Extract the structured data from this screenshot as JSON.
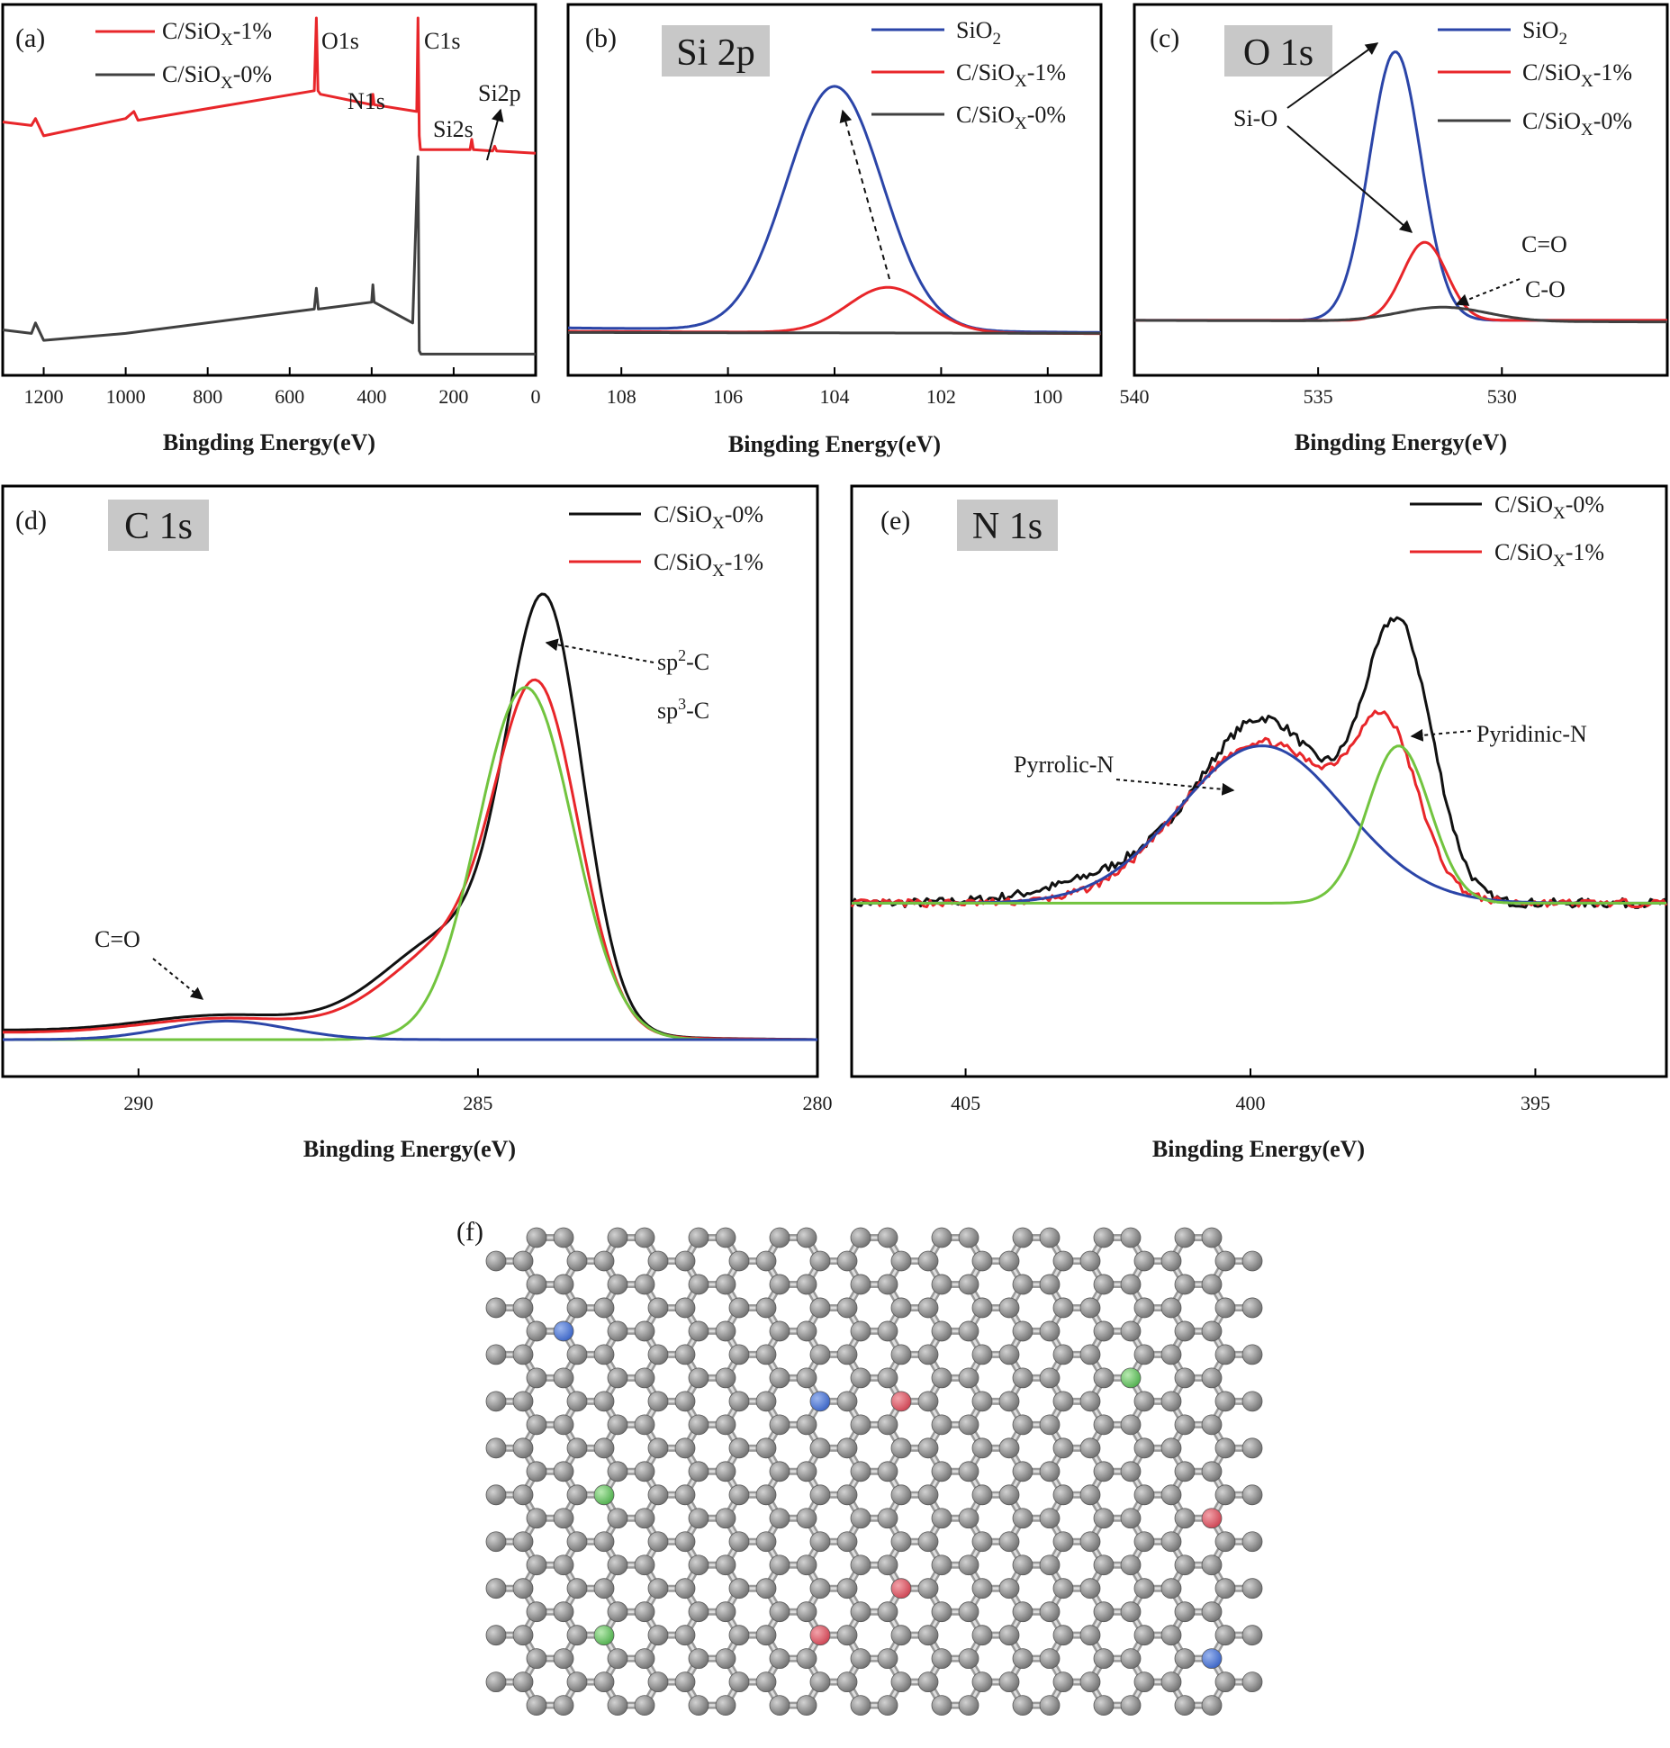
{
  "figure": {
    "background": "#ffffff"
  },
  "colors": {
    "red": "#e8262a",
    "black": "#111111",
    "darkgray": "#404040",
    "blue": "#2b45a8",
    "green": "#72c43f",
    "boxfill": "#c8c8c8",
    "atom_c": "#8d8d8d",
    "atom_n_pyrrolic": "#4b78d2",
    "atom_n_graphitic": "#62c362",
    "atom_n_pyridinic": "#de5a66"
  },
  "xlabel": "Bingding Energy(eV)",
  "chart_data": [
    {
      "id": "a",
      "panel_label": "(a)",
      "type": "line",
      "title": "",
      "xlabel": "Bingding Energy(eV)",
      "xlim": [
        1300,
        0
      ],
      "ylim": [
        0,
        100
      ],
      "xticks": [
        1200,
        1000,
        800,
        600,
        400,
        200,
        0
      ],
      "series": [
        {
          "name": "C/SiOX-1%",
          "legend_main": "C/SiO",
          "legend_sub": "X",
          "legend_tail": "-1%",
          "color_key": "red",
          "kind": "points",
          "x": [
            1300,
            1230,
            1220,
            1200,
            1000,
            980,
            970,
            540,
            535,
            531,
            525,
            400,
            397,
            394,
            290,
            287,
            284,
            281,
            160,
            156,
            152,
            105,
            100,
            95,
            0
          ],
          "y": [
            70,
            69,
            71,
            66,
            71,
            73,
            70.5,
            79,
            100,
            79,
            78,
            75,
            78,
            75,
            73,
            100,
            66,
            62,
            62,
            65,
            62,
            61.6,
            63,
            61.6,
            61
          ]
        },
        {
          "name": "C/SiOX-0%",
          "legend_main": "C/SiO",
          "legend_sub": "X",
          "legend_tail": "-0%",
          "color_key": "darkgray",
          "kind": "points",
          "x": [
            1300,
            1230,
            1220,
            1200,
            1000,
            540,
            535,
            530,
            400,
            397,
            394,
            300,
            287,
            284,
            280,
            270,
            0
          ],
          "y": [
            10,
            9,
            12,
            7,
            9,
            16,
            22,
            16,
            18,
            23,
            18,
            12,
            60,
            4,
            3,
            3,
            3
          ]
        }
      ],
      "annotations": [
        "O1s",
        "C1s",
        "N1s",
        "Si2s",
        "Si2p"
      ]
    },
    {
      "id": "b",
      "panel_label": "(b)",
      "type": "line",
      "title": "Si 2p",
      "xlabel": "Bingding Energy(eV)",
      "xlim": [
        109,
        99
      ],
      "ylim": [
        0,
        100
      ],
      "xticks": [
        108,
        106,
        104,
        102,
        100
      ],
      "series": [
        {
          "name": "SiO2",
          "legend_main": "SiO",
          "legend_sub": "2",
          "legend_tail": "",
          "color_key": "blue",
          "kind": "peaks",
          "baseline": [
            1.8,
            0.2
          ],
          "peaks": [
            {
              "center": 104.0,
              "height": 86,
              "width": 0.9
            }
          ]
        },
        {
          "name": "C/SiOX-1%",
          "legend_main": "C/SiO",
          "legend_sub": "X",
          "legend_tail": "-1%",
          "color_key": "red",
          "kind": "peaks",
          "baseline": [
            0.6,
            -0.2
          ],
          "peaks": [
            {
              "center": 103.0,
              "height": 16,
              "width": 0.75
            }
          ]
        },
        {
          "name": "C/SiOX-0%",
          "legend_main": "C/SiO",
          "legend_sub": "X",
          "legend_tail": "-0%",
          "color_key": "darkgray",
          "kind": "peaks",
          "baseline": [
            0.2,
            -0.1
          ],
          "peaks": []
        }
      ]
    },
    {
      "id": "c",
      "panel_label": "(c)",
      "type": "line",
      "title": "O 1s",
      "xlabel": "Bingding Energy(eV)",
      "xlim": [
        540,
        525.5
      ],
      "ylim": [
        0,
        100
      ],
      "xticks": [
        540,
        535,
        530
      ],
      "series": [
        {
          "name": "SiO2",
          "legend_main": "SiO",
          "legend_sub": "2",
          "legend_tail": "",
          "color_key": "blue",
          "kind": "peaks",
          "baseline": [
            5.5,
            5.5
          ],
          "peaks": [
            {
              "center": 532.9,
              "height": 86,
              "width": 0.7
            }
          ]
        },
        {
          "name": "C/SiOX-1%",
          "legend_main": "C/SiO",
          "legend_sub": "X",
          "legend_tail": "-1%",
          "color_key": "red",
          "kind": "peaks",
          "baseline": [
            5.5,
            5.5
          ],
          "peaks": [
            {
              "center": 532.1,
              "height": 25,
              "width": 0.6
            }
          ]
        },
        {
          "name": "C/SiOX-0%",
          "legend_main": "C/SiO",
          "legend_sub": "X",
          "legend_tail": "-0%",
          "color_key": "darkgray",
          "kind": "peaks",
          "baseline": [
            5.5,
            5.0
          ],
          "peaks": [
            {
              "center": 531.6,
              "height": 4.5,
              "width": 1.2
            }
          ]
        }
      ],
      "annotations": [
        "Si-O",
        "C=O",
        "C-O"
      ]
    },
    {
      "id": "d",
      "panel_label": "(d)",
      "type": "line",
      "title": "C 1s",
      "xlabel": "Bingding Energy(eV)",
      "xlim": [
        292,
        280
      ],
      "ylim": [
        0,
        100
      ],
      "xticks": [
        290,
        285,
        280
      ],
      "series": [
        {
          "name": "C/SiOX-0%",
          "legend_main": "C/SiO",
          "legend_sub": "X",
          "legend_tail": "-0%",
          "color_key": "black",
          "in_legend": true,
          "kind": "peaks",
          "baseline": [
            2,
            0
          ],
          "peaks": [
            {
              "center": 284.0,
              "height": 85,
              "width": 0.55
            },
            {
              "center": 285.3,
              "height": 22,
              "width": 1.05
            },
            {
              "center": 288.7,
              "height": 3.8,
              "width": 1.2
            }
          ]
        },
        {
          "name": "C/SiOX-1%",
          "legend_main": "C/SiO",
          "legend_sub": "X",
          "legend_tail": "-1%",
          "color_key": "red",
          "in_legend": true,
          "kind": "peaks",
          "baseline": [
            1.5,
            0
          ],
          "peaks": [
            {
              "center": 284.1,
              "height": 67,
              "width": 0.6
            },
            {
              "center": 285.3,
              "height": 20,
              "width": 1.0
            },
            {
              "center": 288.7,
              "height": 3.5,
              "width": 1.2
            }
          ]
        },
        {
          "name": "sp2-C fit",
          "color_key": "green",
          "in_legend": false,
          "kind": "peaks",
          "baseline": [
            0,
            0
          ],
          "peaks": [
            {
              "center": 284.3,
              "height": 76,
              "width": 0.7
            }
          ]
        },
        {
          "name": "C=O fit",
          "color_key": "blue",
          "in_legend": false,
          "kind": "peaks",
          "baseline": [
            0,
            0
          ],
          "peaks": [
            {
              "center": 288.7,
              "height": 4,
              "width": 0.9
            }
          ]
        }
      ],
      "annotations": [
        "C=O",
        "sp2-C",
        "sp3-C"
      ]
    },
    {
      "id": "e",
      "panel_label": "(e)",
      "type": "line",
      "title": "N 1s",
      "xlabel": "Bingding Energy(eV)",
      "xlim": [
        407,
        392.7
      ],
      "ylim": [
        0,
        100
      ],
      "xticks": [
        405,
        400,
        395
      ],
      "series": [
        {
          "name": "C/SiOX-0%",
          "legend_main": "C/SiO",
          "legend_sub": "X",
          "legend_tail": "-0%",
          "color_key": "black",
          "in_legend": true,
          "kind": "peaks",
          "noise": 1.1,
          "seed": 7,
          "baseline": [
            21,
            21
          ],
          "peaks": [
            {
              "center": 399.7,
              "height": 42,
              "width": 1.1
            },
            {
              "center": 397.4,
              "height": 64,
              "width": 0.6
            },
            {
              "center": 401.8,
              "height": 8,
              "width": 1.4
            }
          ]
        },
        {
          "name": "C/SiOX-1%",
          "legend_main": "C/SiO",
          "legend_sub": "X",
          "legend_tail": "-1%",
          "color_key": "red",
          "in_legend": true,
          "kind": "peaks",
          "noise": 0.9,
          "seed": 13,
          "baseline": [
            21,
            21
          ],
          "peaks": [
            {
              "center": 399.8,
              "height": 39,
              "width": 1.4
            },
            {
              "center": 397.6,
              "height": 34,
              "width": 0.55
            }
          ]
        },
        {
          "name": "Pyrrolic-N fit",
          "color_key": "blue",
          "in_legend": false,
          "kind": "peaks",
          "baseline": [
            21,
            21
          ],
          "peaks": [
            {
              "center": 399.8,
              "height": 38,
              "width": 1.45
            }
          ]
        },
        {
          "name": "Pyridinic-N fit",
          "color_key": "green",
          "in_legend": false,
          "kind": "peaks",
          "baseline": [
            21,
            21
          ],
          "peaks": [
            {
              "center": 397.4,
              "height": 38,
              "width": 0.55
            }
          ]
        }
      ],
      "annotations": [
        "Pyrrolic-N",
        "Pyridinic-N"
      ]
    }
  ],
  "labels": {
    "a": {
      "o1s": "O1s",
      "c1s": "C1s",
      "n1s": "N1s",
      "si2s": "Si2s",
      "si2p": "Si2p"
    },
    "c": {
      "sio": "Si-O",
      "co_double": "C=O",
      "co_single": "C-O"
    },
    "d": {
      "co_double": "C=O",
      "sp2_main": "sp",
      "sp2_sup": "2",
      "sp2_tail": "-C",
      "sp3_main": "sp",
      "sp3_sup": "3",
      "sp3_tail": "-C"
    },
    "e": {
      "pyrrolic": "Pyrrolic-N",
      "pyridinic": "Pyridinic-N"
    }
  },
  "panel_f": {
    "label": "(f)"
  }
}
